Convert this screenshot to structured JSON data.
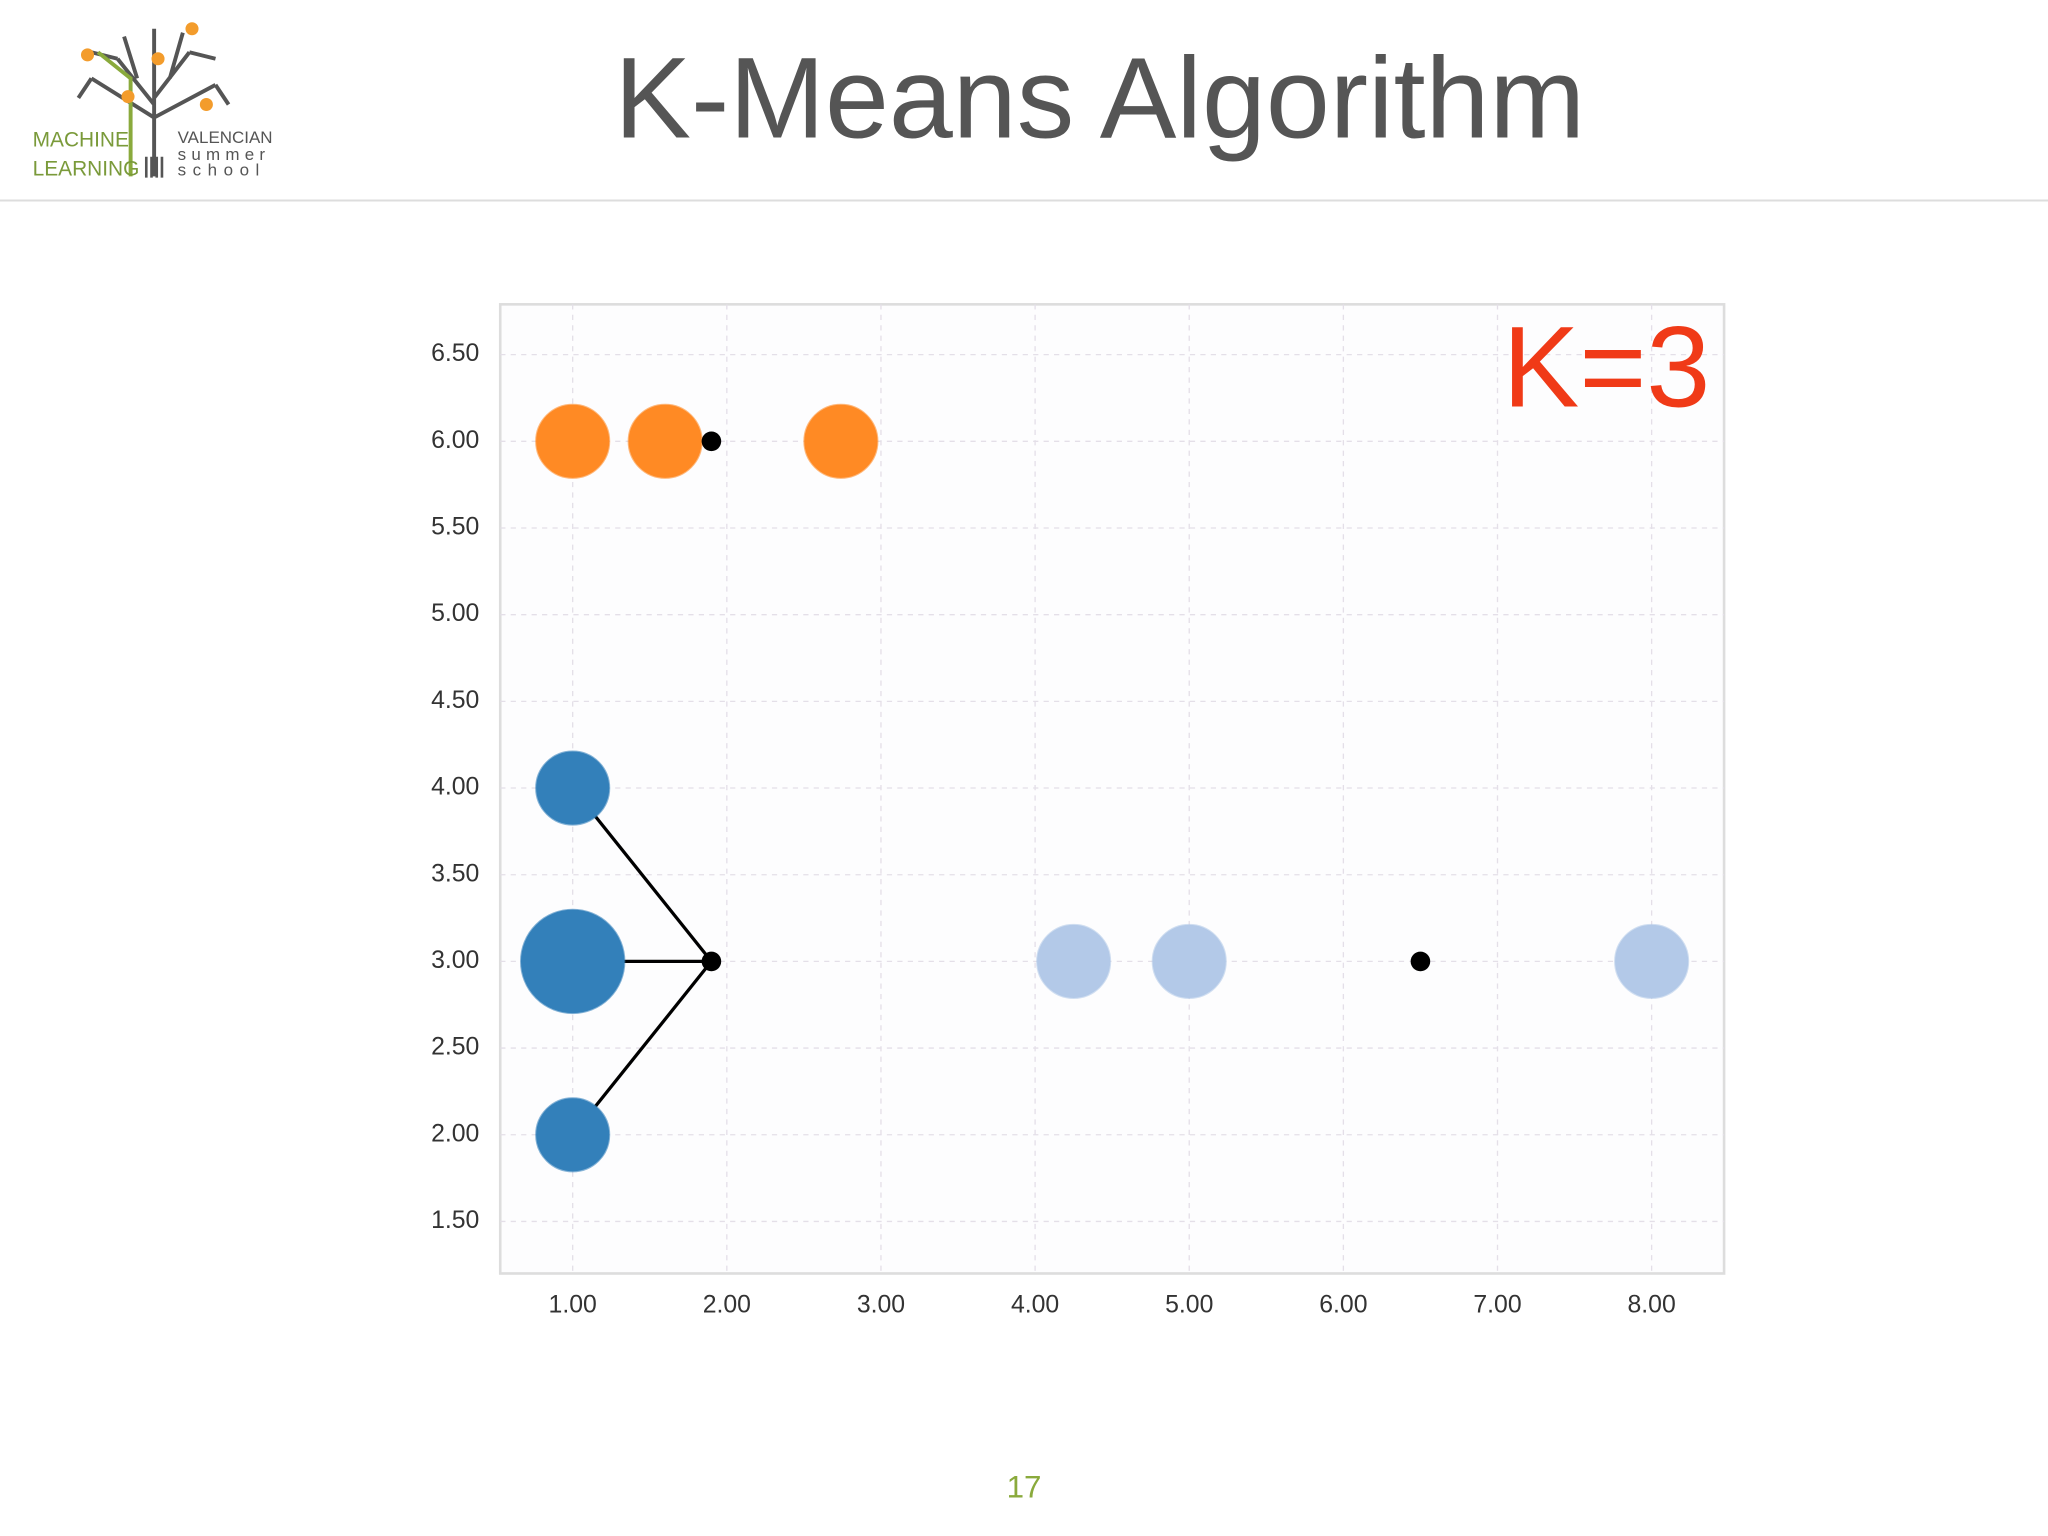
{
  "header": {
    "logo": {
      "left": [
        "MACHINE",
        "LEARNING"
      ],
      "right": [
        "VALENCIAN",
        "summer",
        "school"
      ]
    },
    "title": "K-Means Algorithm"
  },
  "chart_data": {
    "type": "scatter",
    "annotation": "K=3",
    "xlim": [
      0.53,
      8.47
    ],
    "ylim": [
      1.2,
      6.79
    ],
    "xticks": [
      {
        "value": 1,
        "label": "1.00"
      },
      {
        "value": 2,
        "label": "2.00"
      },
      {
        "value": 3,
        "label": "3.00"
      },
      {
        "value": 4,
        "label": "4.00"
      },
      {
        "value": 5,
        "label": "5.00"
      },
      {
        "value": 6,
        "label": "6.00"
      },
      {
        "value": 7,
        "label": "7.00"
      },
      {
        "value": 8,
        "label": "8.00"
      }
    ],
    "yticks": [
      {
        "value": 1.5,
        "label": "1.50"
      },
      {
        "value": 2,
        "label": "2.00"
      },
      {
        "value": 2.5,
        "label": "2.50"
      },
      {
        "value": 3,
        "label": "3.00"
      },
      {
        "value": 3.5,
        "label": "3.50"
      },
      {
        "value": 4,
        "label": "4.00"
      },
      {
        "value": 4.5,
        "label": "4.50"
      },
      {
        "value": 5,
        "label": "5.00"
      },
      {
        "value": 5.5,
        "label": "5.50"
      },
      {
        "value": 6,
        "label": "6.00"
      },
      {
        "value": 6.5,
        "label": "6.50"
      }
    ],
    "grid": true,
    "series": [
      {
        "color": "#ff8a24",
        "x": [
          1.0,
          1.6,
          2.74
        ],
        "values": [
          6,
          6,
          6
        ],
        "sizes": [
          1,
          1,
          1
        ],
        "centroid_x": 1.9,
        "centroid_y": 6,
        "show_links": false
      },
      {
        "color": "#3380ba",
        "x": [
          1,
          1,
          1
        ],
        "values": [
          4,
          3,
          2
        ],
        "sizes": [
          1,
          2,
          1
        ],
        "centroid_x": 1.9,
        "centroid_y": 3,
        "show_links": true
      },
      {
        "color": "#b3c9e8",
        "x": [
          4.25,
          5,
          8
        ],
        "values": [
          3,
          3,
          3
        ],
        "sizes": [
          1,
          1,
          1
        ],
        "centroid_x": 6.5,
        "centroid_y": 3,
        "show_links": false
      }
    ]
  },
  "page_number": "17"
}
